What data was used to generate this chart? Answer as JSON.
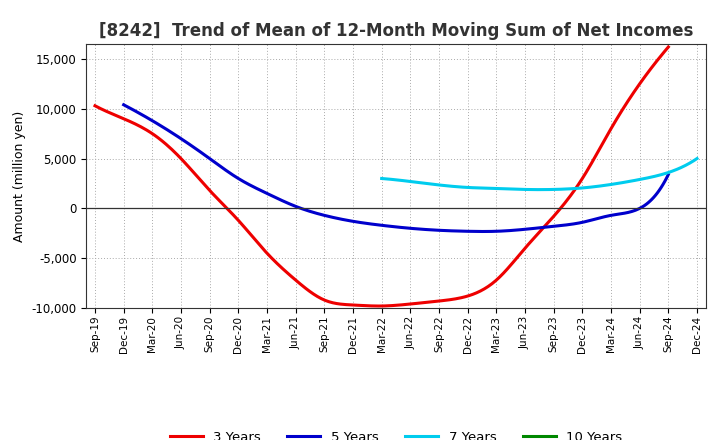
{
  "title": "[8242]  Trend of Mean of 12-Month Moving Sum of Net Incomes",
  "ylabel": "Amount (million yen)",
  "background_color": "#ffffff",
  "grid_color": "#999999",
  "x_labels": [
    "Sep-19",
    "Dec-19",
    "Mar-20",
    "Jun-20",
    "Sep-20",
    "Dec-20",
    "Mar-21",
    "Jun-21",
    "Sep-21",
    "Dec-21",
    "Mar-22",
    "Jun-22",
    "Sep-22",
    "Dec-22",
    "Mar-23",
    "Jun-23",
    "Sep-23",
    "Dec-23",
    "Mar-24",
    "Jun-24",
    "Sep-24",
    "Dec-24"
  ],
  "series": {
    "3 Years": {
      "color": "#ee0000",
      "values": [
        10300,
        9000,
        7500,
        5000,
        1800,
        -1200,
        -4500,
        -7200,
        -9200,
        -9700,
        -9800,
        -9600,
        -9300,
        -8800,
        -7200,
        -4000,
        -800,
        3000,
        8000,
        12500,
        16200,
        null
      ]
    },
    "5 Years": {
      "color": "#0000cc",
      "values": [
        null,
        10400,
        8800,
        7000,
        5000,
        3000,
        1500,
        200,
        -700,
        -1300,
        -1700,
        -2000,
        -2200,
        -2300,
        -2300,
        -2100,
        -1800,
        -1400,
        -700,
        0,
        3400,
        null
      ]
    },
    "7 Years": {
      "color": "#00ccee",
      "values": [
        null,
        null,
        null,
        null,
        null,
        null,
        null,
        null,
        null,
        null,
        3000,
        2700,
        2350,
        2100,
        2000,
        1900,
        1900,
        2050,
        2400,
        2900,
        3600,
        5000
      ]
    },
    "10 Years": {
      "color": "#008800",
      "values": [
        null,
        null,
        null,
        null,
        null,
        null,
        null,
        null,
        null,
        null,
        null,
        null,
        null,
        null,
        null,
        null,
        null,
        null,
        null,
        null,
        null,
        null
      ]
    }
  },
  "ylim": [
    -10000,
    16500
  ],
  "yticks": [
    -10000,
    -5000,
    0,
    5000,
    10000,
    15000
  ],
  "legend_labels": [
    "3 Years",
    "5 Years",
    "7 Years",
    "10 Years"
  ],
  "legend_colors": [
    "#ee0000",
    "#0000cc",
    "#00ccee",
    "#008800"
  ]
}
